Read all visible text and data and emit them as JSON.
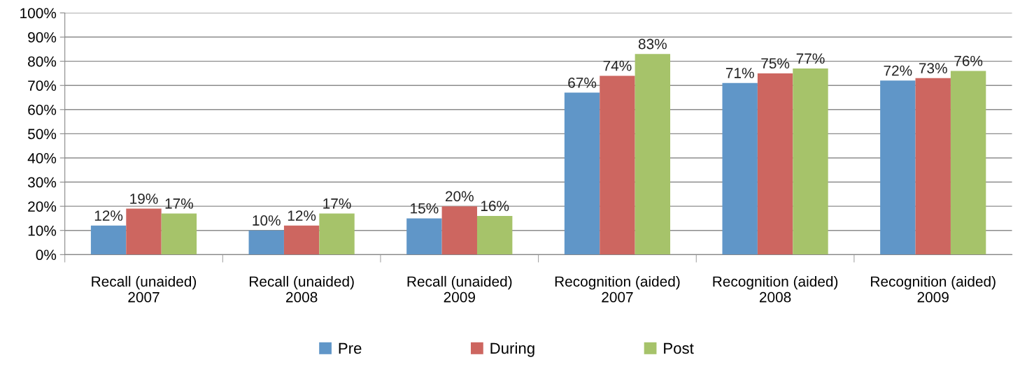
{
  "chart_data": {
    "type": "bar",
    "categories": [
      "Recall (unaided)\n2007",
      "Recall (unaided)\n2008",
      "Recall (unaided)\n2009",
      "Recognition (aided)\n2007",
      "Recognition (aided)\n2008",
      "Recognition (aided)\n2009"
    ],
    "series": [
      {
        "name": "Pre",
        "color": "#6096c8",
        "values": [
          12,
          10,
          15,
          67,
          71,
          72
        ],
        "value_labels": [
          "12%",
          "10%",
          "15%",
          "67%",
          "71%",
          "72%"
        ]
      },
      {
        "name": "During",
        "color": "#cd6660",
        "values": [
          19,
          12,
          20,
          74,
          75,
          73
        ],
        "value_labels": [
          "19%",
          "12%",
          "20%",
          "74%",
          "75%",
          "73%"
        ]
      },
      {
        "name": "Post",
        "color": "#a6c36a",
        "values": [
          17,
          17,
          16,
          83,
          77,
          76
        ],
        "value_labels": [
          "17%",
          "17%",
          "16%",
          "83%",
          "77%",
          "76%"
        ]
      }
    ],
    "ylim": [
      0,
      100
    ],
    "yticks": [
      {
        "value": 0,
        "label": "0%"
      },
      {
        "value": 10,
        "label": "10%"
      },
      {
        "value": 20,
        "label": "20%"
      },
      {
        "value": 30,
        "label": "30%"
      },
      {
        "value": 40,
        "label": "40%"
      },
      {
        "value": 50,
        "label": "50%"
      },
      {
        "value": 60,
        "label": "60%"
      },
      {
        "value": 70,
        "label": "70%"
      },
      {
        "value": 80,
        "label": "80%"
      },
      {
        "value": 90,
        "label": "90%"
      },
      {
        "value": 100,
        "label": "100%"
      }
    ],
    "grid": "y",
    "legend": "bottom"
  }
}
